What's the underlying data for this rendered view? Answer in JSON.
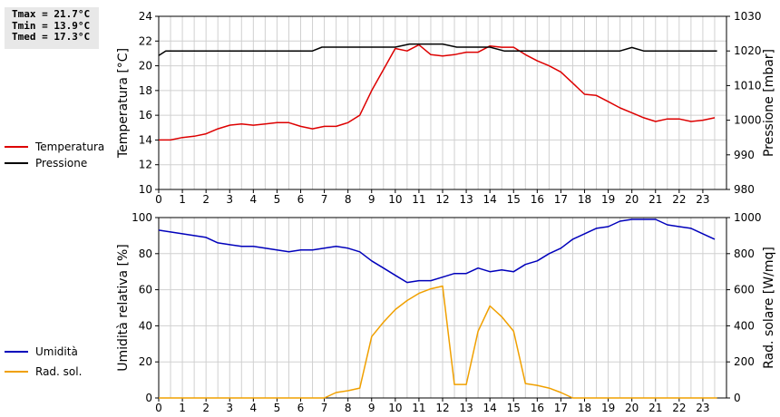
{
  "stats": {
    "tmax": "Tmax = 21.7°C",
    "tmin": "Tmin = 13.9°C",
    "tmed": "Tmed = 17.3°C"
  },
  "colors": {
    "temperature": "#dd0000",
    "pressure": "#000000",
    "humidity": "#0000bb",
    "solar": "#f0a000",
    "grid": "#d0d0d0"
  },
  "chart_data": [
    {
      "type": "line",
      "x_ticks": [
        "0",
        "1",
        "2",
        "3",
        "4",
        "5",
        "6",
        "7",
        "8",
        "9",
        "10",
        "11",
        "12",
        "13",
        "14",
        "15",
        "16",
        "17",
        "18",
        "19",
        "20",
        "21",
        "22",
        "23"
      ],
      "xlim": [
        0,
        24
      ],
      "ylabel_left": "Temperatura [°C]",
      "ylim_left": [
        10,
        24
      ],
      "y_ticks_left": [
        "10",
        "12",
        "14",
        "16",
        "18",
        "20",
        "22",
        "24"
      ],
      "ylabel_right": "Pressione [mbar]",
      "ylim_right": [
        980,
        1030
      ],
      "y_ticks_right": [
        "980",
        "990",
        "1000",
        "1010",
        "1020",
        "1030"
      ],
      "grid": true,
      "legend_position": "left",
      "series": [
        {
          "name": "Temperatura",
          "axis": "left",
          "x": [
            0,
            0.5,
            1,
            1.5,
            2,
            2.5,
            3,
            3.5,
            4,
            4.5,
            5,
            5.5,
            6,
            6.5,
            7,
            7.5,
            8,
            8.5,
            9,
            9.5,
            10,
            10.5,
            11,
            11.5,
            12,
            12.5,
            13,
            13.5,
            14,
            14.5,
            15,
            15.5,
            16,
            16.5,
            17,
            17.5,
            18,
            18.5,
            19,
            19.5,
            20,
            20.5,
            21,
            21.5,
            22,
            22.5,
            23,
            23.5
          ],
          "y": [
            14.0,
            14.0,
            14.2,
            14.3,
            14.5,
            14.9,
            15.2,
            15.3,
            15.2,
            15.3,
            15.4,
            15.4,
            15.1,
            14.9,
            15.1,
            15.1,
            15.4,
            16.0,
            18.0,
            19.7,
            21.4,
            21.2,
            21.7,
            20.9,
            20.8,
            20.9,
            21.1,
            21.1,
            21.6,
            21.5,
            21.5,
            20.9,
            20.4,
            20.0,
            19.5,
            18.6,
            17.7,
            17.6,
            17.1,
            16.6,
            16.2,
            15.8,
            15.5,
            15.7,
            15.7,
            15.5,
            15.6,
            15.8
          ]
        },
        {
          "name": "Pressione",
          "axis": "right",
          "x": [
            0,
            0.3,
            0.6,
            6.5,
            6.9,
            10,
            10.6,
            12,
            12.6,
            14,
            14.6,
            19.5,
            20,
            20.5,
            23.6
          ],
          "y": [
            1018.7,
            1020,
            1020,
            1020,
            1021.1,
            1021.1,
            1022,
            1022,
            1021.1,
            1021.1,
            1020,
            1020,
            1021,
            1020,
            1020
          ]
        }
      ]
    },
    {
      "type": "line",
      "x_ticks": [
        "0",
        "1",
        "2",
        "3",
        "4",
        "5",
        "6",
        "7",
        "8",
        "9",
        "10",
        "11",
        "12",
        "13",
        "14",
        "15",
        "16",
        "17",
        "18",
        "19",
        "20",
        "21",
        "22",
        "23"
      ],
      "xlim": [
        0,
        24
      ],
      "ylabel_left": "Umidità relativa [%]",
      "ylim_left": [
        0,
        100
      ],
      "y_ticks_left": [
        "0",
        "20",
        "40",
        "60",
        "80",
        "100"
      ],
      "ylabel_right": "Rad. solare [W/mq]",
      "ylim_right": [
        0,
        1000
      ],
      "y_ticks_right": [
        "0",
        "200",
        "400",
        "600",
        "800",
        "1000"
      ],
      "grid": true,
      "legend_position": "left",
      "series": [
        {
          "name": "Umidità",
          "axis": "left",
          "x": [
            0,
            0.5,
            1,
            1.5,
            2,
            2.5,
            3,
            3.5,
            4,
            4.5,
            5,
            5.5,
            6,
            6.5,
            7,
            7.5,
            8,
            8.5,
            9,
            9.5,
            10,
            10.5,
            11,
            11.5,
            12,
            12.5,
            13,
            13.5,
            14,
            14.5,
            15,
            15.5,
            16,
            16.5,
            17,
            17.5,
            18,
            18.5,
            19,
            19.5,
            20,
            20.5,
            21,
            21.5,
            22,
            22.5,
            23,
            23.5
          ],
          "y": [
            93,
            92,
            91,
            90,
            89,
            86,
            85,
            84,
            84,
            83,
            82,
            81,
            82,
            82,
            83,
            84,
            83,
            81,
            76,
            72,
            68,
            64,
            65,
            65,
            67,
            69,
            69,
            72,
            70,
            71,
            70,
            74,
            76,
            80,
            83,
            88,
            91,
            94,
            95,
            98,
            99,
            99,
            99,
            96,
            95,
            94,
            91,
            88
          ]
        },
        {
          "name": "Rad. sol.",
          "axis": "right",
          "x": [
            0,
            7,
            7.5,
            8,
            8.5,
            9,
            9.5,
            10,
            10.5,
            11,
            11.5,
            12,
            12.5,
            13,
            13.5,
            14,
            14.5,
            15,
            15.5,
            16,
            16.5,
            17,
            17.5,
            18,
            23.6
          ],
          "y": [
            0,
            0,
            30,
            40,
            55,
            340,
            420,
            490,
            540,
            580,
            605,
            620,
            75,
            75,
            370,
            510,
            450,
            370,
            80,
            70,
            55,
            30,
            0,
            0,
            0
          ]
        }
      ]
    }
  ]
}
